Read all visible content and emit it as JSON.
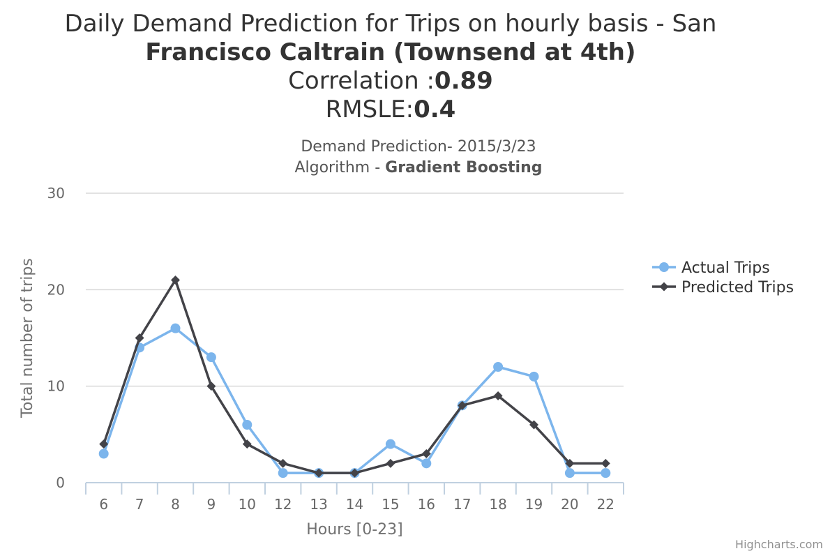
{
  "chart_data": {
    "type": "line",
    "title": "Daily Demand Prediction for Trips on hourly basis - San Francisco Caltrain (Townsend at 4th)",
    "title_lines": [
      "Daily Demand Prediction for Trips on hourly basis - San",
      "Francisco Caltrain (Townsend at 4th)"
    ],
    "correlation": {
      "label": "Correlation :",
      "value": "0.89"
    },
    "rmsle": {
      "label": "RMSLE:",
      "value": "0.4"
    },
    "subtitle": {
      "line1_label": "Demand Prediction- ",
      "line1_value": "2015/3/23",
      "line2_label": "Algorithm - ",
      "line2_value": "Gradient Boosting"
    },
    "xlabel": "Hours [0-23]",
    "ylabel": "Total number of trips",
    "categories": [
      "6",
      "7",
      "8",
      "9",
      "10",
      "12",
      "13",
      "14",
      "15",
      "16",
      "17",
      "18",
      "19",
      "20",
      "22"
    ],
    "ylim": [
      0,
      30
    ],
    "yticks": [
      0,
      10,
      20,
      30
    ],
    "grid": true,
    "legend_position": "right",
    "series": [
      {
        "name": "Actual Trips",
        "color": "#7cb5ec",
        "marker": "circle",
        "values": [
          3,
          14,
          16,
          13,
          6,
          1,
          1,
          1,
          4,
          2,
          8,
          12,
          11,
          1,
          1
        ]
      },
      {
        "name": "Predicted Trips",
        "color": "#434348",
        "marker": "diamond",
        "values": [
          4,
          15,
          21,
          10,
          4,
          2,
          1,
          1,
          2,
          3,
          8,
          9,
          6,
          2,
          2
        ]
      }
    ]
  },
  "credits": "Highcharts.com"
}
